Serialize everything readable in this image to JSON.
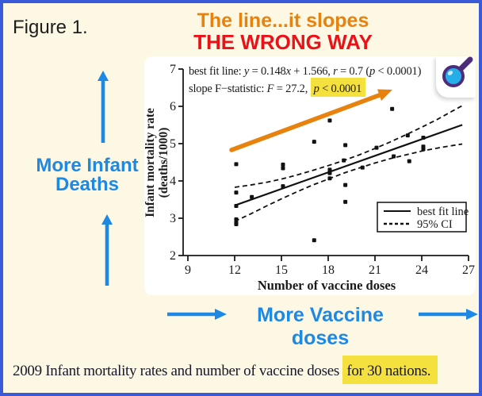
{
  "colors": {
    "border_blue": "#3A5BD9",
    "background_cream": "#FCF8E3",
    "accent_blue": "#1E88E5",
    "title_orange": "#E8820E",
    "title_red": "#E91219",
    "highlight_yellow": "#F5E13D",
    "trend_arrow_orange": "#E8820E",
    "ink": "#1a1a1a"
  },
  "figure_label": "Figure 1.",
  "title": {
    "line1": "The line...it slopes",
    "line2": "THE WRONG WAY"
  },
  "left_annotation": {
    "line1": "More Infant",
    "line2": "Deaths"
  },
  "bottom_annotation": {
    "text": "More Vaccine doses"
  },
  "caption": {
    "prefix": "2009 Infant mortality rates and number of vaccine doses ",
    "highlighted": "for 30 nations."
  },
  "zoom_button": {
    "icon": "magnifier"
  },
  "chart_data": {
    "type": "scatter",
    "xlabel": "Number of vaccine doses",
    "ylabel_line1": "Infant mortality rate",
    "ylabel_line2": "(deaths/1000)",
    "xlim": [
      9,
      27
    ],
    "ylim": [
      2,
      7
    ],
    "xticks": [
      9,
      12,
      15,
      18,
      21,
      24,
      27
    ],
    "yticks": [
      2,
      3,
      4,
      5,
      6,
      7
    ],
    "grid": false,
    "points": [
      [
        12.1,
        4.45
      ],
      [
        12.1,
        3.69
      ],
      [
        12.1,
        3.33
      ],
      [
        12.1,
        2.97
      ],
      [
        12.1,
        2.88
      ],
      [
        12.1,
        2.84
      ],
      [
        13.1,
        3.57
      ],
      [
        15.1,
        4.44
      ],
      [
        15.1,
        4.34
      ],
      [
        15.1,
        3.86
      ],
      [
        17.1,
        5.05
      ],
      [
        17.1,
        2.41
      ],
      [
        18.1,
        5.62
      ],
      [
        18.1,
        4.3
      ],
      [
        18.1,
        4.21
      ],
      [
        18.1,
        4.07
      ],
      [
        19.1,
        4.96
      ],
      [
        19.0,
        4.55
      ],
      [
        19.1,
        3.89
      ],
      [
        19.1,
        3.44
      ],
      [
        20.2,
        4.36
      ],
      [
        21.1,
        4.89
      ],
      [
        22.1,
        5.93
      ],
      [
        22.2,
        4.66
      ],
      [
        23.1,
        5.22
      ],
      [
        23.2,
        4.53
      ],
      [
        24.1,
        5.16
      ],
      [
        24.1,
        4.92
      ],
      [
        24.1,
        4.85
      ],
      [
        26.2,
        6.33
      ]
    ],
    "fit_line": {
      "slope": 0.148,
      "intercept": 1.566,
      "x_start": 12,
      "x_end": 26.6
    },
    "ci_band": {
      "x": [
        12,
        13,
        14,
        15,
        16,
        17,
        18,
        19,
        20,
        21,
        22,
        23,
        24,
        25,
        26,
        26.6
      ],
      "upper": [
        3.83,
        3.89,
        3.96,
        4.05,
        4.16,
        4.28,
        4.41,
        4.55,
        4.7,
        4.87,
        5.05,
        5.24,
        5.44,
        5.65,
        5.88,
        6.02
      ],
      "lower": [
        2.92,
        3.11,
        3.32,
        3.52,
        3.71,
        3.89,
        4.05,
        4.21,
        4.35,
        4.48,
        4.6,
        4.7,
        4.8,
        4.88,
        4.95,
        4.99
      ]
    },
    "stats_lines": [
      [
        {
          "t": "best fit line: "
        },
        {
          "t": "y",
          "i": true
        },
        {
          "t": " = 0.148"
        },
        {
          "t": "x",
          "i": true
        },
        {
          "t": " + 1.566, "
        },
        {
          "t": "r",
          "i": true
        },
        {
          "t": " = 0.7 ("
        },
        {
          "t": "p",
          "i": true
        },
        {
          "t": " < 0.0001)"
        }
      ],
      [
        {
          "t": "slope F−statistic: "
        },
        {
          "t": "F",
          "i": true
        },
        {
          "t": " = 27.2, "
        },
        {
          "hl": true,
          "parts": [
            {
              "t": "p",
              "i": true
            },
            {
              "t": " < 0.0001"
            }
          ]
        }
      ]
    ],
    "legend": {
      "position": "bottom-right",
      "items": [
        {
          "label": "best fit line",
          "style": "solid"
        },
        {
          "label": "95% CI",
          "style": "dashed"
        }
      ]
    }
  }
}
